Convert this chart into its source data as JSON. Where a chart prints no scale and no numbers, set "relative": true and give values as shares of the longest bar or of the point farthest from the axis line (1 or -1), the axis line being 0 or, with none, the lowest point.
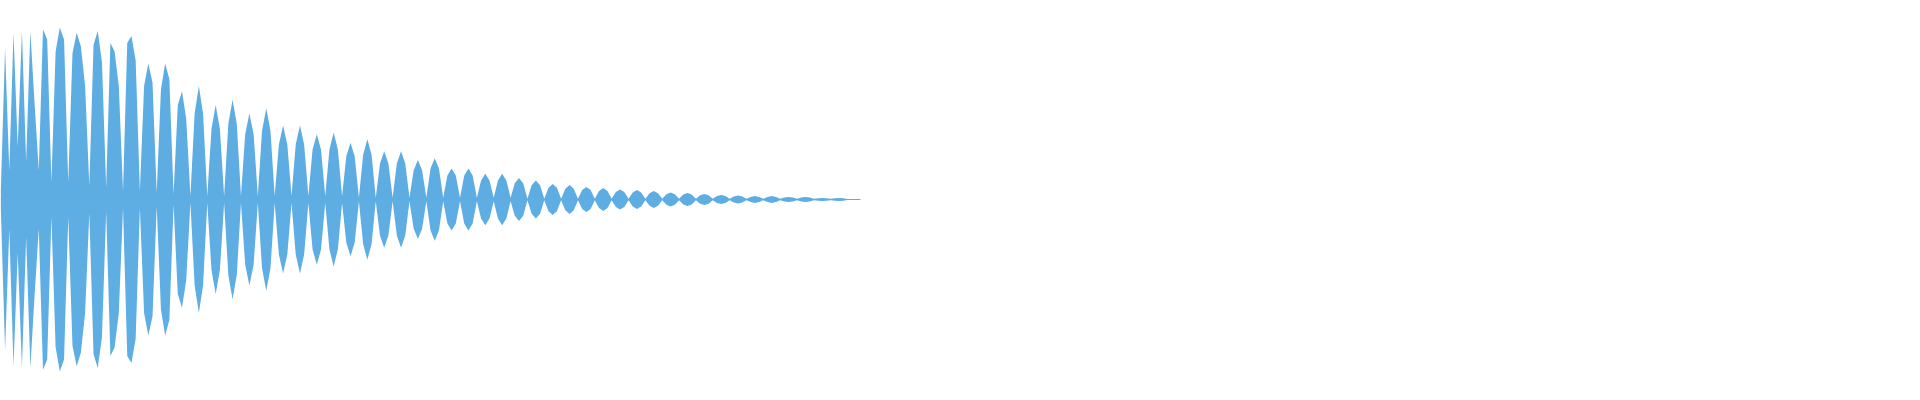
{
  "chart_data": {
    "type": "area",
    "relative": true,
    "marker": "none",
    "tick_labels": false,
    "ref_lines": [
      {
        "axis": "y",
        "value": 0,
        "color": "#5dade2"
      }
    ],
    "categories": [
      null,
      null,
      null,
      null,
      null,
      null,
      null,
      null,
      null,
      null,
      null,
      null,
      null,
      null,
      null,
      null,
      null,
      null,
      null,
      null,
      null,
      null,
      null,
      null,
      null,
      null,
      null,
      null,
      null,
      null,
      null,
      null,
      null,
      null,
      null,
      null,
      null,
      null,
      null,
      null,
      null,
      null,
      null,
      null,
      null,
      null,
      null,
      null,
      null,
      null,
      null,
      null,
      null,
      null,
      null,
      null,
      null,
      null,
      null,
      null,
      null,
      null,
      null,
      null,
      null,
      null,
      null,
      null,
      null,
      null,
      null,
      null,
      null,
      null,
      null,
      null,
      null,
      null,
      null,
      null,
      null,
      null,
      null,
      null,
      null,
      null,
      null,
      null,
      null,
      null,
      null,
      null,
      null,
      null,
      null,
      null,
      null,
      null,
      null,
      null,
      null,
      null,
      null,
      null,
      null,
      null,
      null,
      null,
      null,
      null,
      null,
      null,
      null,
      null,
      null,
      null,
      null,
      null,
      null,
      null,
      null,
      null,
      null,
      null,
      null,
      null,
      null,
      null,
      null,
      null,
      null,
      null,
      null,
      null,
      null,
      null,
      null,
      null,
      null,
      null,
      null,
      null,
      null,
      null,
      null,
      null,
      null,
      null,
      null,
      null,
      null,
      null,
      null,
      null,
      null,
      null,
      null,
      null,
      null,
      null,
      null,
      null,
      null,
      null,
      null,
      null,
      null,
      null,
      null,
      null,
      null,
      null,
      null,
      null,
      null,
      null,
      null,
      null,
      null,
      null,
      null,
      null,
      null,
      null,
      null,
      null,
      null,
      null,
      null,
      null,
      null,
      null,
      null,
      null,
      null,
      null,
      null,
      null,
      null,
      null,
      null,
      null,
      null,
      null,
      null
    ],
    "series": [
      {
        "color": "#5dade2",
        "values": [
          0.06,
          0.88,
          0.17,
          0.97,
          0.31,
          0.98,
          0.22,
          0.98,
          0.56,
          0.17,
          0.99,
          0.93,
          0.1,
          0.86,
          1,
          0.93,
          0.1,
          0.85,
          0.97,
          0.89,
          0.66,
          0.08,
          0.9,
          0.98,
          0.8,
          0.07,
          0.91,
          0.86,
          0.66,
          0.05,
          0.91,
          0.95,
          0.81,
          0.05,
          0.66,
          0.79,
          0.68,
          0.04,
          0.64,
          0.79,
          0.7,
          0.03,
          0.55,
          0.63,
          0.47,
          0.02,
          0.5,
          0.66,
          0.5,
          0.02,
          0.41,
          0.55,
          0.41,
          0.02,
          0.44,
          0.58,
          0.44,
          0.02,
          0.38,
          0.5,
          0.38,
          0.02,
          0.4,
          0.53,
          0.4,
          0.02,
          0.32,
          0.43,
          0.32,
          0.02,
          0.32,
          0.43,
          0.32,
          0.02,
          0.29,
          0.38,
          0.29,
          0.02,
          0.29,
          0.39,
          0.29,
          0.02,
          0.25,
          0.33,
          0.25,
          0.01,
          0.26,
          0.35,
          0.26,
          0.01,
          0.21,
          0.28,
          0.21,
          0.01,
          0.21,
          0.28,
          0.21,
          0.01,
          0.17,
          0.23,
          0.17,
          0.01,
          0.18,
          0.24,
          0.18,
          0.01,
          0.14,
          0.18,
          0.14,
          0.01,
          0.14,
          0.18,
          0.14,
          0.01,
          0.11,
          0.15,
          0.11,
          0.01,
          0.11,
          0.15,
          0.11,
          0.01,
          0.094,
          0.125,
          0.094,
          0.005,
          0.083,
          0.11,
          0.083,
          0.005,
          0.068,
          0.09,
          0.068,
          0.005,
          0.063,
          0.084,
          0.063,
          0.005,
          0.055,
          0.073,
          0.055,
          0.005,
          0.05,
          0.067,
          0.05,
          0.005,
          0.044,
          0.058,
          0.044,
          0.005,
          0.041,
          0.055,
          0.041,
          0.005,
          0.037,
          0.049,
          0.037,
          0.005,
          0.031,
          0.041,
          0.031,
          0.005,
          0.029,
          0.038,
          0.029,
          0.005,
          0.024,
          0.032,
          0.024,
          0.005,
          0.02,
          0.026,
          0.02,
          0.005,
          0.017,
          0.023,
          0.017,
          0.005,
          0.015,
          0.02,
          0.015,
          0.005,
          0.015,
          0.02,
          0.015,
          0.005,
          0.011,
          0.015,
          0.011,
          0.005,
          0.011,
          0.015,
          0.011,
          0.005,
          0.007,
          0.009,
          0.007,
          0.005,
          0.007,
          0.009,
          0.007,
          0.003,
          0.003,
          0.003,
          0.003
        ]
      },
      {
        "color": "#5eaee3",
        "values": [
          -0.06,
          -0.88,
          -0.17,
          -0.97,
          -0.31,
          -0.98,
          -0.22,
          -0.98,
          -0.56,
          -0.17,
          -0.99,
          -0.93,
          -0.1,
          -0.86,
          -1,
          -0.93,
          -0.1,
          -0.85,
          -0.97,
          -0.89,
          -0.66,
          -0.08,
          -0.9,
          -0.98,
          -0.8,
          -0.07,
          -0.91,
          -0.86,
          -0.66,
          -0.05,
          -0.91,
          -0.95,
          -0.81,
          -0.05,
          -0.66,
          -0.79,
          -0.68,
          -0.04,
          -0.64,
          -0.79,
          -0.7,
          -0.03,
          -0.55,
          -0.63,
          -0.47,
          -0.02,
          -0.5,
          -0.66,
          -0.5,
          -0.02,
          -0.41,
          -0.55,
          -0.41,
          -0.02,
          -0.44,
          -0.58,
          -0.44,
          -0.02,
          -0.38,
          -0.5,
          -0.38,
          -0.02,
          -0.4,
          -0.53,
          -0.4,
          -0.02,
          -0.32,
          -0.43,
          -0.32,
          -0.02,
          -0.32,
          -0.43,
          -0.32,
          -0.02,
          -0.29,
          -0.38,
          -0.29,
          -0.02,
          -0.29,
          -0.39,
          -0.29,
          -0.02,
          -0.25,
          -0.33,
          -0.25,
          -0.01,
          -0.26,
          -0.35,
          -0.26,
          -0.01,
          -0.21,
          -0.28,
          -0.21,
          -0.01,
          -0.21,
          -0.28,
          -0.21,
          -0.01,
          -0.17,
          -0.23,
          -0.17,
          -0.01,
          -0.18,
          -0.24,
          -0.18,
          -0.01,
          -0.14,
          -0.18,
          -0.14,
          -0.01,
          -0.14,
          -0.18,
          -0.14,
          -0.01,
          -0.11,
          -0.15,
          -0.11,
          -0.01,
          -0.11,
          -0.15,
          -0.11,
          -0.01,
          -0.094,
          -0.125,
          -0.094,
          -0.005,
          -0.083,
          -0.11,
          -0.083,
          -0.005,
          -0.068,
          -0.09,
          -0.068,
          -0.005,
          -0.063,
          -0.084,
          -0.063,
          -0.005,
          -0.055,
          -0.073,
          -0.055,
          -0.005,
          -0.05,
          -0.067,
          -0.05,
          -0.005,
          -0.044,
          -0.058,
          -0.044,
          -0.005,
          -0.041,
          -0.055,
          -0.041,
          -0.005,
          -0.037,
          -0.049,
          -0.037,
          -0.005,
          -0.031,
          -0.041,
          -0.031,
          -0.005,
          -0.029,
          -0.038,
          -0.029,
          -0.005,
          -0.024,
          -0.032,
          -0.024,
          -0.005,
          -0.02,
          -0.026,
          -0.02,
          -0.005,
          -0.017,
          -0.023,
          -0.017,
          -0.005,
          -0.015,
          -0.02,
          -0.015,
          -0.005,
          -0.015,
          -0.02,
          -0.015,
          -0.005,
          -0.011,
          -0.015,
          -0.011,
          -0.005,
          -0.011,
          -0.015,
          -0.011,
          -0.005,
          -0.007,
          -0.009,
          -0.007,
          -0.005,
          -0.007,
          -0.009,
          -0.007,
          -0.003,
          -0.003,
          -0.003,
          -0.003
        ]
      }
    ]
  }
}
